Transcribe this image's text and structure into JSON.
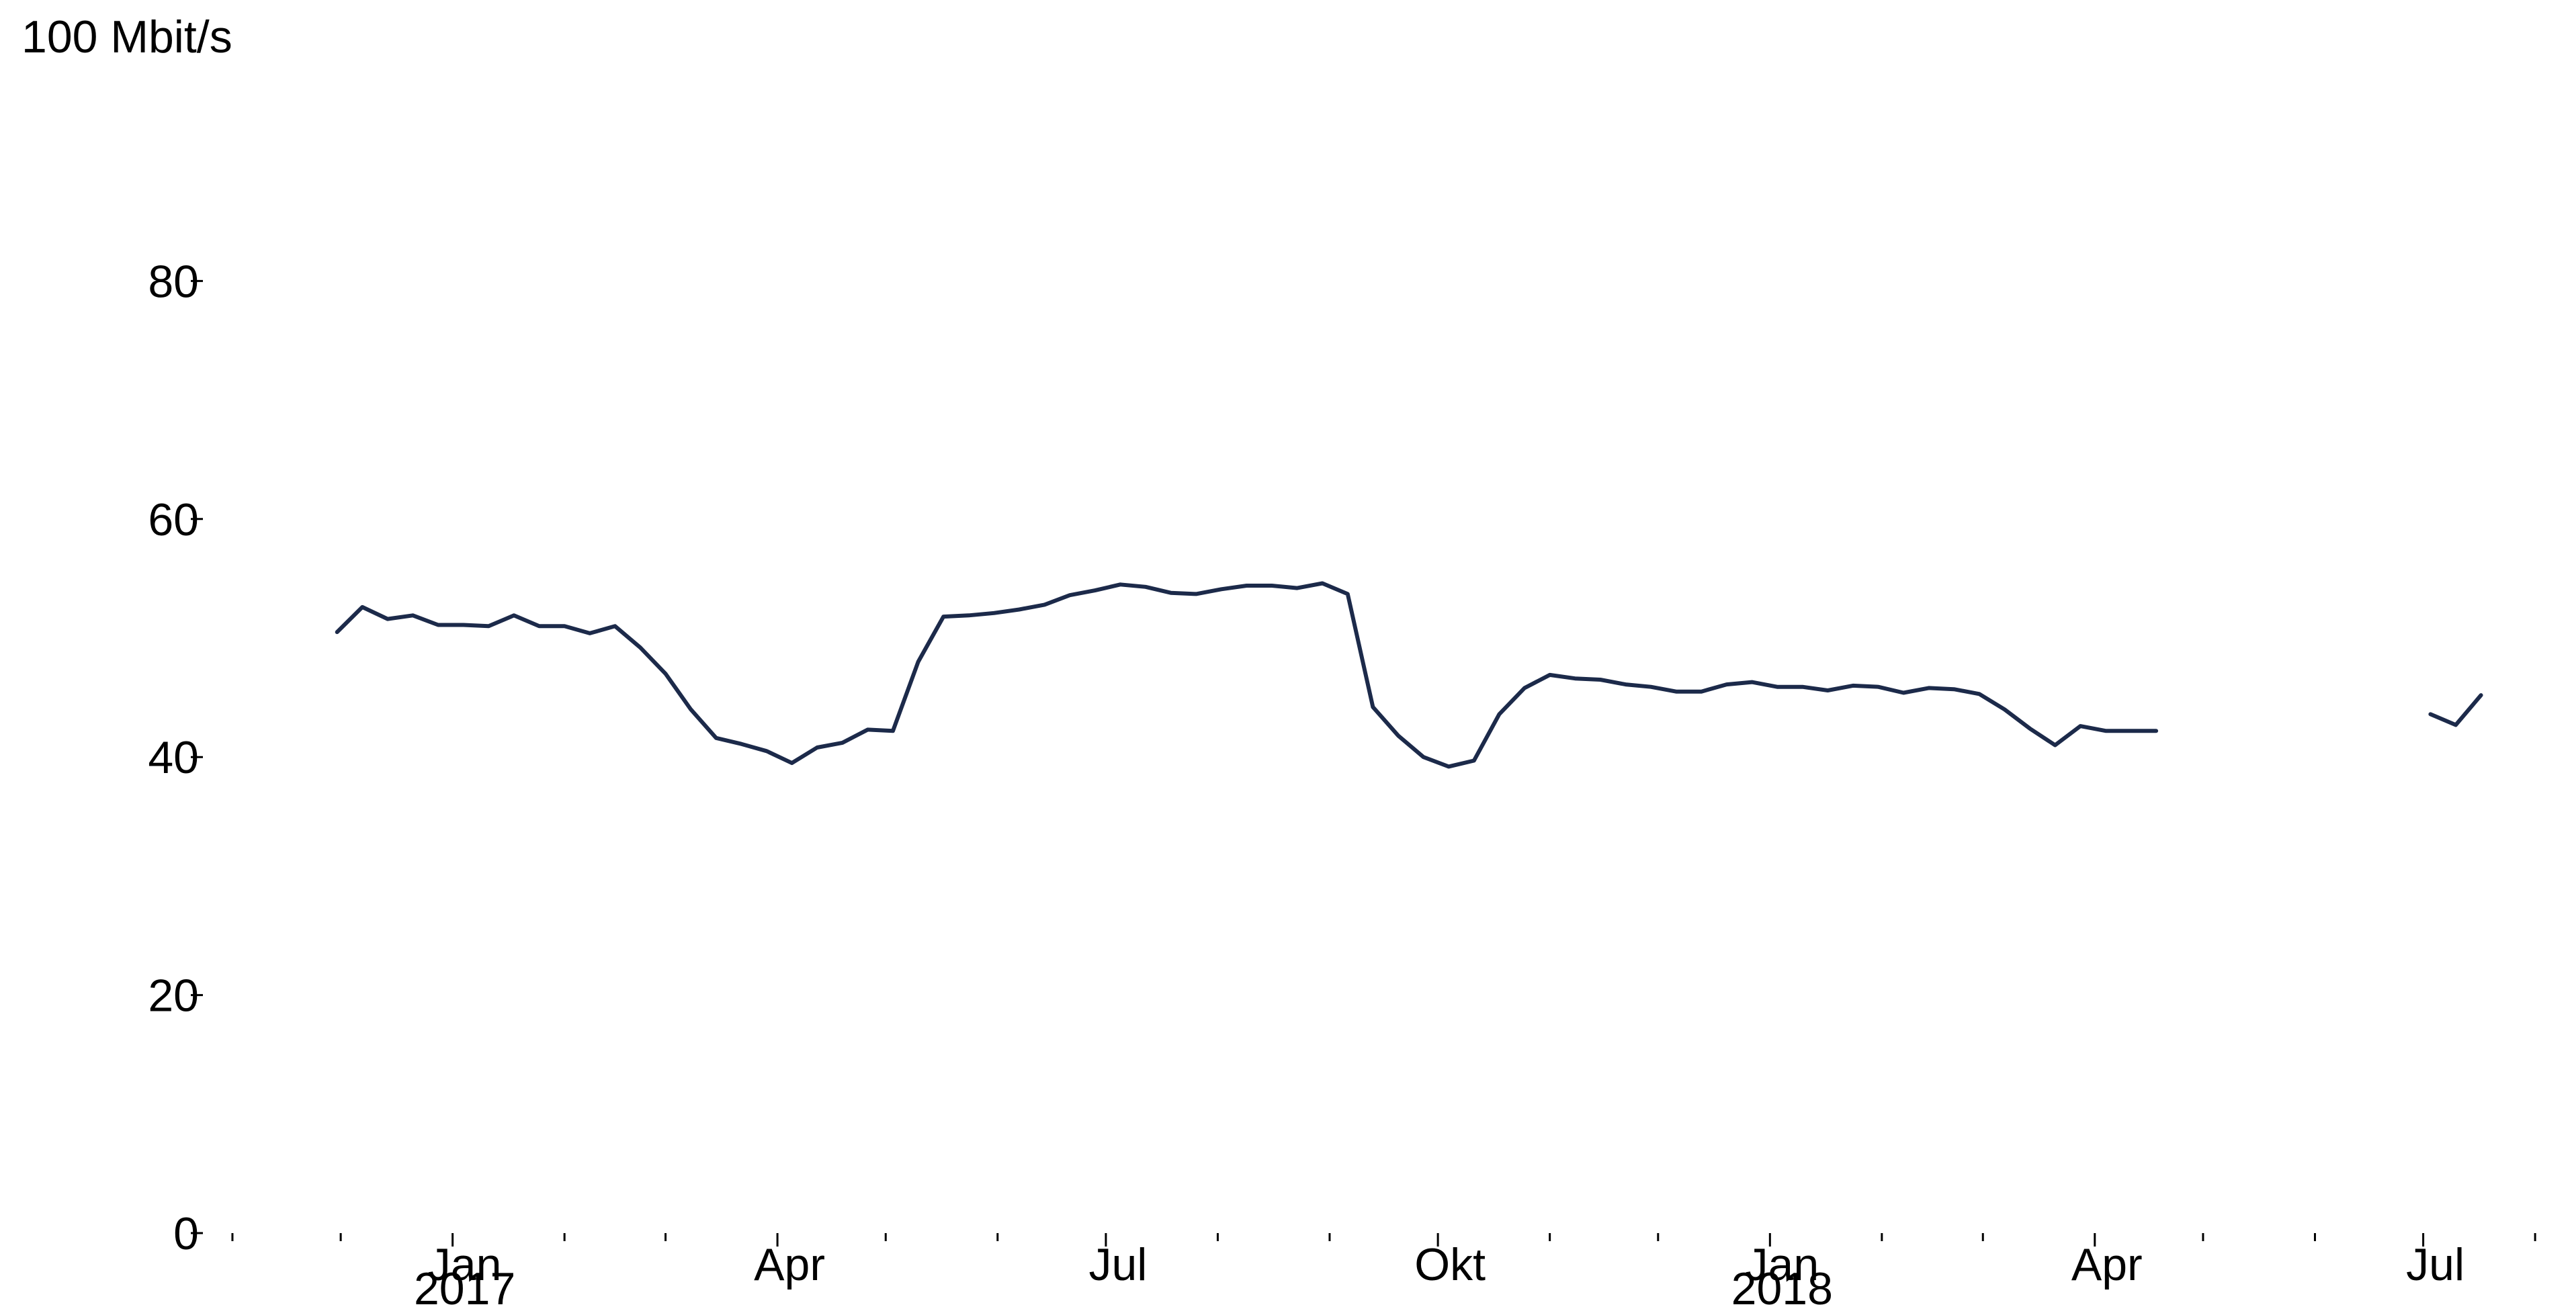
{
  "chart_data": {
    "type": "line",
    "title": "",
    "xlabel": "",
    "ylabel": "100 Mbit/s",
    "ylim": [
      0,
      100
    ],
    "xlim": [
      "2016-10-16",
      "2018-08-06"
    ],
    "yticks": [
      0,
      20,
      40,
      60,
      80
    ],
    "ytick_labels": [
      "0",
      "20",
      "40",
      "60",
      "80"
    ],
    "xticks": [
      {
        "date": "2017-01-01",
        "label": "Jan",
        "sublabel": "2017"
      },
      {
        "date": "2017-04-01",
        "label": "Apr",
        "sublabel": ""
      },
      {
        "date": "2017-07-01",
        "label": "Jul",
        "sublabel": ""
      },
      {
        "date": "2017-10-01",
        "label": "Okt",
        "sublabel": ""
      },
      {
        "date": "2018-01-01",
        "label": "Jan",
        "sublabel": "2018"
      },
      {
        "date": "2018-04-01",
        "label": "Apr",
        "sublabel": ""
      },
      {
        "date": "2018-07-01",
        "label": "Jul",
        "sublabel": ""
      }
    ],
    "minor_ticks": [
      "2016-11-01",
      "2016-12-01",
      "2017-02-01",
      "2017-03-01",
      "2017-05-01",
      "2017-06-01",
      "2017-08-01",
      "2017-09-01",
      "2017-11-01",
      "2017-12-01",
      "2018-02-01",
      "2018-03-01",
      "2018-05-01",
      "2018-06-01",
      "2018-08-01"
    ],
    "grid": false,
    "legend": "none",
    "series": [
      {
        "color": "#1c2a4a",
        "points": [
          [
            "2016-11-30",
            50.5
          ],
          [
            "2016-12-07",
            52.6
          ],
          [
            "2016-12-14",
            51.6
          ],
          [
            "2016-12-21",
            51.9
          ],
          [
            "2016-12-28",
            51.1
          ],
          [
            "2017-01-04",
            51.1
          ],
          [
            "2017-01-11",
            51.0
          ],
          [
            "2017-01-18",
            51.9
          ],
          [
            "2017-01-25",
            51.0
          ],
          [
            "2017-02-01",
            51.0
          ],
          [
            "2017-02-08",
            50.4
          ],
          [
            "2017-02-15",
            51.0
          ],
          [
            "2017-02-22",
            49.2
          ],
          [
            "2017-03-01",
            47.0
          ],
          [
            "2017-03-08",
            44.0
          ],
          [
            "2017-03-15",
            41.6
          ],
          [
            "2017-03-22",
            41.1
          ],
          [
            "2017-03-29",
            40.5
          ],
          [
            "2017-04-05",
            39.5
          ],
          [
            "2017-04-12",
            40.8
          ],
          [
            "2017-04-19",
            41.2
          ],
          [
            "2017-04-26",
            42.3
          ],
          [
            "2017-05-03",
            42.2
          ],
          [
            "2017-05-10",
            48.0
          ],
          [
            "2017-05-17",
            51.8
          ],
          [
            "2017-05-24",
            51.9
          ],
          [
            "2017-05-31",
            52.1
          ],
          [
            "2017-06-07",
            52.4
          ],
          [
            "2017-06-14",
            52.8
          ],
          [
            "2017-06-21",
            53.6
          ],
          [
            "2017-06-28",
            54.0
          ],
          [
            "2017-07-05",
            54.5
          ],
          [
            "2017-07-12",
            54.3
          ],
          [
            "2017-07-19",
            53.8
          ],
          [
            "2017-07-26",
            53.7
          ],
          [
            "2017-08-02",
            54.1
          ],
          [
            "2017-08-09",
            54.4
          ],
          [
            "2017-08-16",
            54.4
          ],
          [
            "2017-08-23",
            54.2
          ],
          [
            "2017-08-30",
            54.6
          ],
          [
            "2017-09-06",
            53.7
          ],
          [
            "2017-09-13",
            44.2
          ],
          [
            "2017-09-20",
            41.8
          ],
          [
            "2017-09-27",
            40.0
          ],
          [
            "2017-10-04",
            39.2
          ],
          [
            "2017-10-11",
            39.7
          ],
          [
            "2017-10-18",
            43.6
          ],
          [
            "2017-10-25",
            45.8
          ],
          [
            "2017-11-01",
            46.9
          ],
          [
            "2017-11-08",
            46.6
          ],
          [
            "2017-11-15",
            46.5
          ],
          [
            "2017-11-22",
            46.1
          ],
          [
            "2017-11-29",
            45.9
          ],
          [
            "2017-12-06",
            45.5
          ],
          [
            "2017-12-13",
            45.5
          ],
          [
            "2017-12-20",
            46.1
          ],
          [
            "2017-12-27",
            46.3
          ],
          [
            "2018-01-03",
            45.9
          ],
          [
            "2018-01-10",
            45.9
          ],
          [
            "2018-01-17",
            45.6
          ],
          [
            "2018-01-24",
            46.0
          ],
          [
            "2018-01-31",
            45.9
          ],
          [
            "2018-02-07",
            45.4
          ],
          [
            "2018-02-14",
            45.8
          ],
          [
            "2018-02-21",
            45.7
          ],
          [
            "2018-02-28",
            45.3
          ],
          [
            "2018-03-07",
            44.0
          ],
          [
            "2018-03-14",
            42.4
          ],
          [
            "2018-03-21",
            41.0
          ],
          [
            "2018-03-28",
            42.6
          ],
          [
            "2018-04-04",
            42.2
          ],
          [
            "2018-04-11",
            42.2
          ],
          [
            "2018-04-18",
            42.2
          ],
          null,
          [
            "2018-07-03",
            43.6
          ],
          [
            "2018-07-10",
            42.7
          ],
          [
            "2018-07-17",
            45.2
          ]
        ]
      }
    ]
  }
}
